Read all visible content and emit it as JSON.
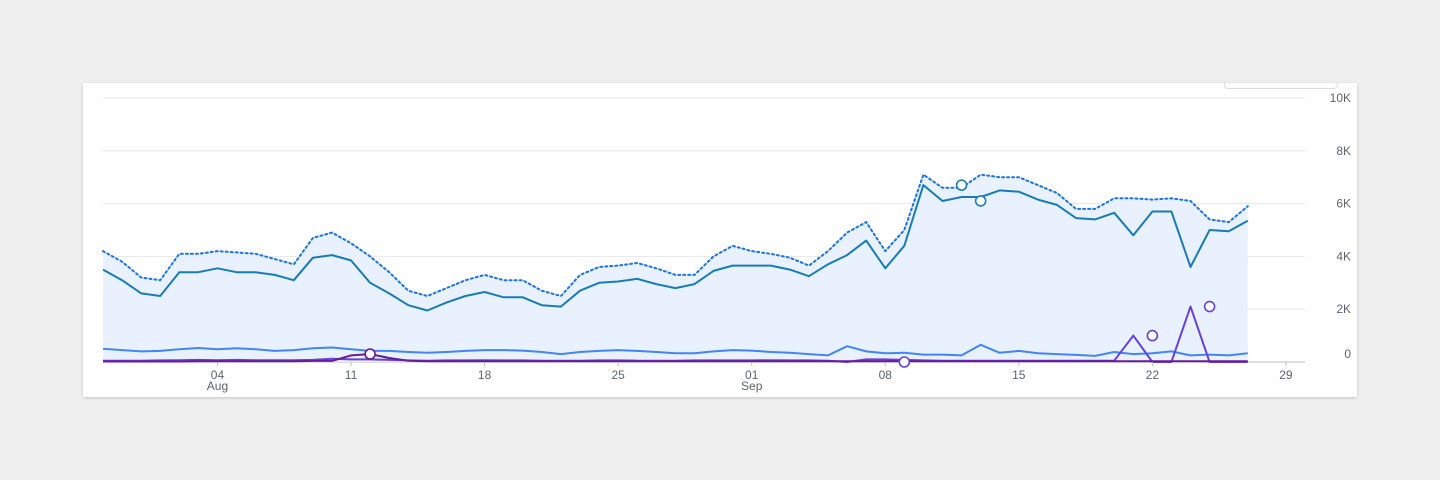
{
  "chart_data": {
    "type": "line",
    "x": {
      "start": "2024-07-29",
      "end": "2024-09-30",
      "ticks": [
        {
          "date": "2024-08-04",
          "day": "04",
          "month": "Aug"
        },
        {
          "date": "2024-08-11",
          "day": "11",
          "month": ""
        },
        {
          "date": "2024-08-18",
          "day": "18",
          "month": ""
        },
        {
          "date": "2024-08-25",
          "day": "25",
          "month": ""
        },
        {
          "date": "2024-09-01",
          "day": "01",
          "month": "Sep"
        },
        {
          "date": "2024-09-08",
          "day": "08",
          "month": ""
        },
        {
          "date": "2024-09-15",
          "day": "15",
          "month": ""
        },
        {
          "date": "2024-09-22",
          "day": "22",
          "month": ""
        },
        {
          "date": "2024-09-29",
          "day": "29",
          "month": ""
        }
      ]
    },
    "y": {
      "min": 0,
      "max": 10000,
      "grid": true,
      "position": "right",
      "ticks": [
        {
          "value": 10000,
          "label": "10K"
        },
        {
          "value": 8000,
          "label": "8K"
        },
        {
          "value": 6000,
          "label": "6K"
        },
        {
          "value": 4000,
          "label": "4K"
        },
        {
          "value": 2000,
          "label": "2K"
        },
        {
          "value": 0,
          "label": "0"
        }
      ]
    },
    "series": [
      {
        "style": "dotted",
        "color": "#1a73e8",
        "fill": "#e8f1fd",
        "values": [
          4200,
          3800,
          3200,
          3100,
          4100,
          4100,
          4200,
          4150,
          4100,
          3900,
          3700,
          4700,
          4900,
          4500,
          4000,
          3400,
          2700,
          2500,
          2800,
          3100,
          3300,
          3100,
          3100,
          2700,
          2500,
          3300,
          3600,
          3650,
          3750,
          3550,
          3300,
          3300,
          4000,
          4400,
          4200,
          4100,
          3950,
          3650,
          4200,
          4900,
          5300,
          4200,
          5000,
          7100,
          6600,
          6600,
          7100,
          7000,
          7000,
          6700,
          6400,
          5800,
          5800,
          6200,
          6200,
          6150,
          6200,
          6100,
          5400,
          5300,
          5900
        ]
      },
      {
        "style": "solid",
        "color": "#1a7cb5",
        "values": [
          3500,
          3100,
          2600,
          2500,
          3400,
          3400,
          3550,
          3400,
          3400,
          3300,
          3100,
          3950,
          4050,
          3850,
          3000,
          2600,
          2150,
          1950,
          2250,
          2500,
          2650,
          2450,
          2450,
          2150,
          2100,
          2700,
          3000,
          3050,
          3150,
          2950,
          2800,
          2950,
          3450,
          3650,
          3650,
          3650,
          3500,
          3250,
          3700,
          4050,
          4600,
          3550,
          4400,
          6700,
          6100,
          6250,
          6250,
          6500,
          6450,
          6150,
          5950,
          5450,
          5400,
          5650,
          4800,
          5700,
          5700,
          3600,
          5000,
          4950,
          5350
        ],
        "markers": [
          {
            "date": "2024-09-12",
            "value": 6700
          },
          {
            "date": "2024-09-13",
            "value": 6100
          }
        ]
      },
      {
        "style": "solid",
        "color": "#4285f4",
        "values": [
          500,
          450,
          400,
          420,
          480,
          530,
          480,
          520,
          480,
          420,
          450,
          520,
          550,
          480,
          420,
          420,
          380,
          350,
          380,
          420,
          450,
          450,
          430,
          380,
          300,
          380,
          420,
          450,
          420,
          380,
          330,
          330,
          400,
          450,
          430,
          380,
          350,
          300,
          250,
          600,
          400,
          330,
          350,
          280,
          280,
          250,
          650,
          350,
          420,
          330,
          300,
          270,
          230,
          380,
          300,
          330,
          400,
          250,
          280,
          250,
          330
        ]
      },
      {
        "style": "solid",
        "color": "#6741d9",
        "values": [
          50,
          50,
          50,
          60,
          70,
          80,
          70,
          80,
          70,
          70,
          70,
          80,
          120,
          100,
          100,
          80,
          60,
          50,
          60,
          60,
          70,
          60,
          60,
          50,
          50,
          50,
          60,
          60,
          50,
          50,
          50,
          60,
          60,
          60,
          60,
          70,
          60,
          60,
          50,
          0,
          100,
          100,
          80,
          60,
          50,
          50,
          50,
          50,
          50,
          50,
          50,
          50,
          50,
          50,
          1000,
          0,
          0,
          2100,
          0,
          0,
          0
        ],
        "markers": [
          {
            "date": "2024-09-09",
            "value": 0
          },
          {
            "date": "2024-09-22",
            "value": 1000
          },
          {
            "date": "2024-09-25",
            "value": 2100
          }
        ]
      },
      {
        "style": "solid",
        "color": "#6a1b9a",
        "values": [
          20,
          20,
          20,
          20,
          20,
          30,
          30,
          30,
          30,
          30,
          30,
          40,
          40,
          250,
          300,
          150,
          50,
          30,
          30,
          30,
          30,
          30,
          30,
          30,
          30,
          30,
          30,
          30,
          30,
          30,
          30,
          30,
          30,
          30,
          30,
          30,
          30,
          30,
          30,
          30,
          30,
          30,
          30,
          30,
          30,
          30,
          30,
          30,
          30,
          30,
          30,
          30,
          30,
          30,
          30,
          30,
          30,
          30,
          30,
          30,
          30
        ],
        "markers": [
          {
            "date": "2024-08-12",
            "value": 300
          }
        ]
      }
    ]
  }
}
